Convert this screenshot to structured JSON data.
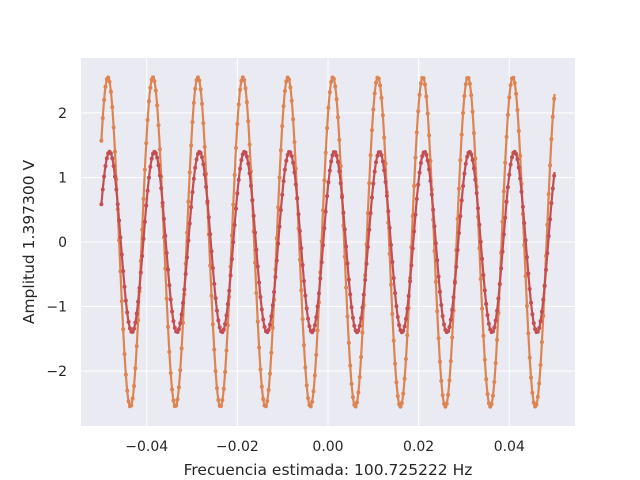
{
  "chart_data": {
    "type": "scatter",
    "xlabel": "Frecuencia estimada: 100.725222 Hz",
    "ylabel": "Amplitud 1.397300 V",
    "xlim": [
      -0.0545,
      0.0545
    ],
    "ylim": [
      -2.85,
      2.85
    ],
    "xticks": [
      -0.04,
      -0.02,
      0.0,
      0.02,
      0.04
    ],
    "xtick_labels": [
      "−0.04",
      "−0.02",
      "0.00",
      "0.02",
      "0.04"
    ],
    "yticks": [
      -2,
      -1,
      0,
      1,
      2
    ],
    "ytick_labels": [
      "−2",
      "−1",
      "0",
      "1",
      "2"
    ],
    "grid": true,
    "background": "#eaeaf2",
    "x_range": [
      -0.05,
      0.05
    ],
    "series": [
      {
        "color": "#dd8452",
        "amplitude": 2.55,
        "frequency": 100.725222,
        "phase": 0.89,
        "marker": "dot"
      },
      {
        "color": "#c44e52",
        "amplitude": 1.3973,
        "frequency": 100.725222,
        "phase": 0.66,
        "marker": "dot"
      }
    ]
  }
}
